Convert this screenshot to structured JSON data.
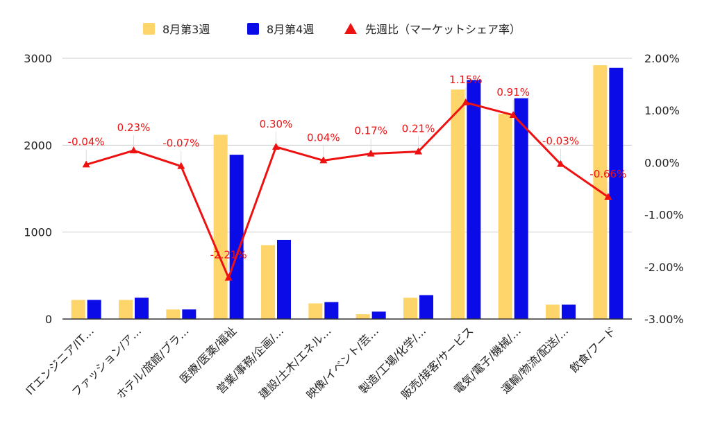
{
  "colors": {
    "week3": "#fdd56b",
    "week4": "#0b0be8",
    "line": "#ee1111",
    "grid": "#cccccc",
    "axis": "#333333"
  },
  "chart_data": {
    "type": "bar",
    "title": "",
    "xlabel": "",
    "ylabel": "",
    "ylim": [
      0,
      3000
    ],
    "y_ticks": [
      "0",
      "1000",
      "2000",
      "3000"
    ],
    "y2lim": [
      -3.0,
      2.0
    ],
    "y2_ticks": [
      "-3.00%",
      "-2.00%",
      "-1.00%",
      "0.00%",
      "1.00%",
      "2.00%"
    ],
    "grid": true,
    "legend_position": "top-center",
    "categories": [
      "ITエンジニア/IT…",
      "ファッション/ア…",
      "ホテル/旅館/ブラ…",
      "医療/医薬/福祉",
      "営業/事務/企画/…",
      "建設/土木/エネル…",
      "映像/イベント/芸…",
      "製造/工場/化学/…",
      "販売/接客/サービス",
      "電気/電子/機械/…",
      "運輸/物流/配送/…",
      "飲食/フード"
    ],
    "series": [
      {
        "name": "8月第3週",
        "type": "bar",
        "values": [
          220,
          220,
          110,
          2120,
          850,
          180,
          55,
          245,
          2640,
          2360,
          165,
          2920
        ]
      },
      {
        "name": "8月第4週",
        "type": "bar",
        "values": [
          220,
          245,
          110,
          1890,
          910,
          195,
          85,
          275,
          2750,
          2540,
          165,
          2890
        ]
      },
      {
        "name": "先週比（マーケットシェア率）",
        "type": "line",
        "axis": "right",
        "values": [
          -0.04,
          0.23,
          -0.07,
          -2.21,
          0.3,
          0.04,
          0.17,
          0.21,
          1.15,
          0.91,
          -0.03,
          -0.66
        ]
      }
    ],
    "point_labels": [
      "-0.04%",
      "0.23%",
      "-0.07%",
      "-2.21%",
      "0.30%",
      "0.04%",
      "0.17%",
      "0.21%",
      "1.15%",
      "0.91%",
      "-0.03%",
      "-0.66%"
    ]
  }
}
